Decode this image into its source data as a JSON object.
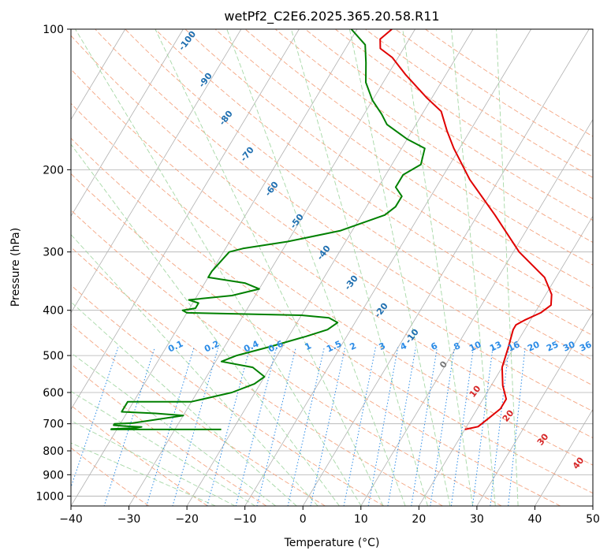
{
  "chart_data": {
    "type": "line",
    "title": "wetPf2_C2E6.2025.365.20.58.R11",
    "xlabel": "Temperature (°C)",
    "ylabel": "Pressure (hPa)",
    "xlim": [
      -40,
      50
    ],
    "ylim": [
      1050,
      100
    ],
    "y_scale": "log",
    "skew": "skew-T log-p",
    "grid": true,
    "x_ticks": [
      -40,
      -30,
      -20,
      -10,
      0,
      10,
      20,
      30,
      40,
      50
    ],
    "y_ticks": [
      100,
      200,
      300,
      400,
      500,
      600,
      700,
      800,
      900,
      1000
    ],
    "series": [
      {
        "color": "#e00000",
        "role": "temperature",
        "points": [
          [
            20,
            720
          ],
          [
            22,
            710
          ],
          [
            23,
            680
          ],
          [
            24,
            650
          ],
          [
            24,
            620
          ],
          [
            22,
            580
          ],
          [
            20,
            530
          ],
          [
            19,
            480
          ],
          [
            18,
            440
          ],
          [
            18,
            430
          ],
          [
            19,
            420
          ],
          [
            21,
            405
          ],
          [
            22,
            390
          ],
          [
            21,
            370
          ],
          [
            18,
            340
          ],
          [
            11,
            300
          ],
          [
            3,
            250
          ],
          [
            -5,
            210
          ],
          [
            -11,
            180
          ],
          [
            -14,
            165
          ],
          [
            -17,
            150
          ],
          [
            -21,
            140
          ],
          [
            -27,
            125
          ],
          [
            -31,
            115
          ],
          [
            -34,
            110
          ],
          [
            -35,
            105
          ],
          [
            -34,
            100
          ]
        ]
      },
      {
        "color": "#008000",
        "role": "dewpoint",
        "points": [
          [
            -22,
            720
          ],
          [
            -41,
            720
          ],
          [
            -41,
            718
          ],
          [
            -37,
            715
          ],
          [
            -36,
            711
          ],
          [
            -39,
            708
          ],
          [
            -41,
            705
          ],
          [
            -41,
            700
          ],
          [
            -38,
            698
          ],
          [
            -30,
            672
          ],
          [
            -35,
            665
          ],
          [
            -41,
            660
          ],
          [
            -41,
            628
          ],
          [
            -30,
            628
          ],
          [
            -24,
            600
          ],
          [
            -21,
            575
          ],
          [
            -20,
            555
          ],
          [
            -23,
            530
          ],
          [
            -29,
            515
          ],
          [
            -27,
            500
          ],
          [
            -22,
            478
          ],
          [
            -17,
            455
          ],
          [
            -14,
            440
          ],
          [
            -13,
            425
          ],
          [
            -15,
            415
          ],
          [
            -20,
            410
          ],
          [
            -40,
            405
          ],
          [
            -41,
            400
          ],
          [
            -39,
            396
          ],
          [
            -39,
            386
          ],
          [
            -41,
            380
          ],
          [
            -34,
            372
          ],
          [
            -30,
            360
          ],
          [
            -33,
            350
          ],
          [
            -40,
            340
          ],
          [
            -40,
            330
          ],
          [
            -39,
            300
          ],
          [
            -37,
            295
          ],
          [
            -30,
            285
          ],
          [
            -22,
            270
          ],
          [
            -16,
            250
          ],
          [
            -15,
            240
          ],
          [
            -15,
            228
          ],
          [
            -17,
            218
          ],
          [
            -17,
            205
          ],
          [
            -15,
            195
          ],
          [
            -16,
            180
          ],
          [
            -20,
            172
          ],
          [
            -25,
            160
          ],
          [
            -27,
            152
          ],
          [
            -30,
            142
          ],
          [
            -33,
            130
          ],
          [
            -35,
            118
          ],
          [
            -37,
            108
          ],
          [
            -41,
            100
          ]
        ]
      }
    ],
    "dry_adiabat_labels": [
      "-100",
      "-90",
      "-80",
      "-70",
      "-60",
      "-50",
      "-40",
      "-30",
      "-20",
      "-10",
      "0",
      "10",
      "20",
      "30",
      "40"
    ],
    "mixing_ratio_labels": [
      "0.1",
      "0.2",
      "0.4",
      "0.6",
      "1",
      "1.5",
      "2",
      "3",
      "4",
      "6",
      "8",
      "10",
      "13",
      "16",
      "20",
      "25",
      "30",
      "36"
    ]
  },
  "colors": {
    "temperature": "#e00000",
    "dewpoint": "#008000",
    "isotherm": "#b0b0b0",
    "isobar": "#b0b0b0",
    "dry_adiabat": "#f4a582",
    "moist_adiabat": "#a6d8a6",
    "mixing_ratio": "#2b8be6",
    "dry_label": "#1f6fb0",
    "moist_label": "#d62728",
    "mixing_label": "#2b8be6"
  }
}
